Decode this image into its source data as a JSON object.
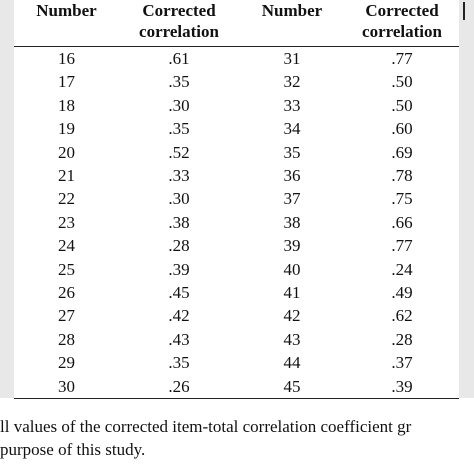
{
  "table": {
    "headers": [
      "Number",
      "Corrected\ncorrelation",
      "Number",
      "Corrected\ncorrelation"
    ],
    "rows": [
      [
        "16",
        ".61",
        "31",
        ".77"
      ],
      [
        "17",
        ".35",
        "32",
        ".50"
      ],
      [
        "18",
        ".30",
        "33",
        ".50"
      ],
      [
        "19",
        ".35",
        "34",
        ".60"
      ],
      [
        "20",
        ".52",
        "35",
        ".69"
      ],
      [
        "21",
        ".33",
        "36",
        ".78"
      ],
      [
        "22",
        ".30",
        "37",
        ".75"
      ],
      [
        "23",
        ".38",
        "38",
        ".66"
      ],
      [
        "24",
        ".28",
        "39",
        ".77"
      ],
      [
        "25",
        ".39",
        "40",
        ".24"
      ],
      [
        "26",
        ".45",
        "41",
        ".49"
      ],
      [
        "27",
        ".42",
        "42",
        ".62"
      ],
      [
        "28",
        ".43",
        "43",
        ".28"
      ],
      [
        "29",
        ".35",
        "44",
        ".37"
      ],
      [
        "30",
        ".26",
        "45",
        ".39"
      ]
    ]
  },
  "note": {
    "line1": "ll values of the corrected item-total correlation coefficient gr",
    "line2": "purpose of this study."
  }
}
